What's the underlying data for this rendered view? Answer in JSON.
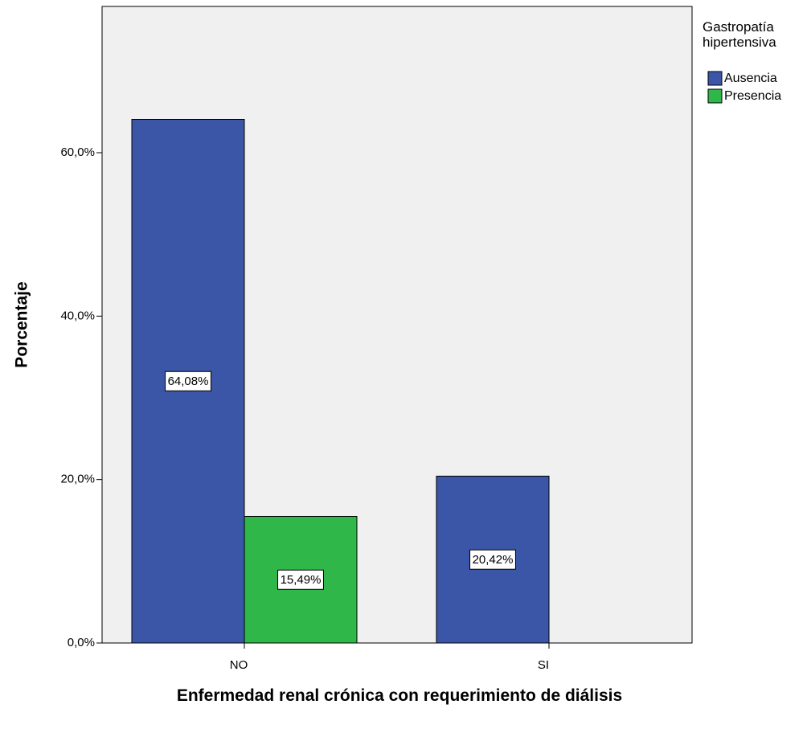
{
  "chart_data": {
    "type": "bar",
    "y_label": "Porcentaje",
    "x_label": "Enfermedad renal crónica con requerimiento de diálisis",
    "legend_title": "Gastropatía hipertensiva",
    "legend_position": "right",
    "categories": [
      "NO",
      "SI"
    ],
    "series": [
      {
        "name": "Ausencia",
        "color": "#3b56a6",
        "values": [
          64.08,
          20.42
        ],
        "value_labels": [
          "64,08%",
          "20,42%"
        ]
      },
      {
        "name": "Presencia",
        "color": "#2fb74a",
        "values": [
          15.49,
          null
        ],
        "value_labels": [
          "15,49%",
          null
        ]
      }
    ],
    "ylim": [
      0,
      77.9
    ],
    "yticks": [
      {
        "value": 0,
        "label": "0,0%"
      },
      {
        "value": 20,
        "label": "20,0%"
      },
      {
        "value": 40,
        "label": "40,0%"
      },
      {
        "value": 60,
        "label": "60,0%"
      }
    ]
  }
}
